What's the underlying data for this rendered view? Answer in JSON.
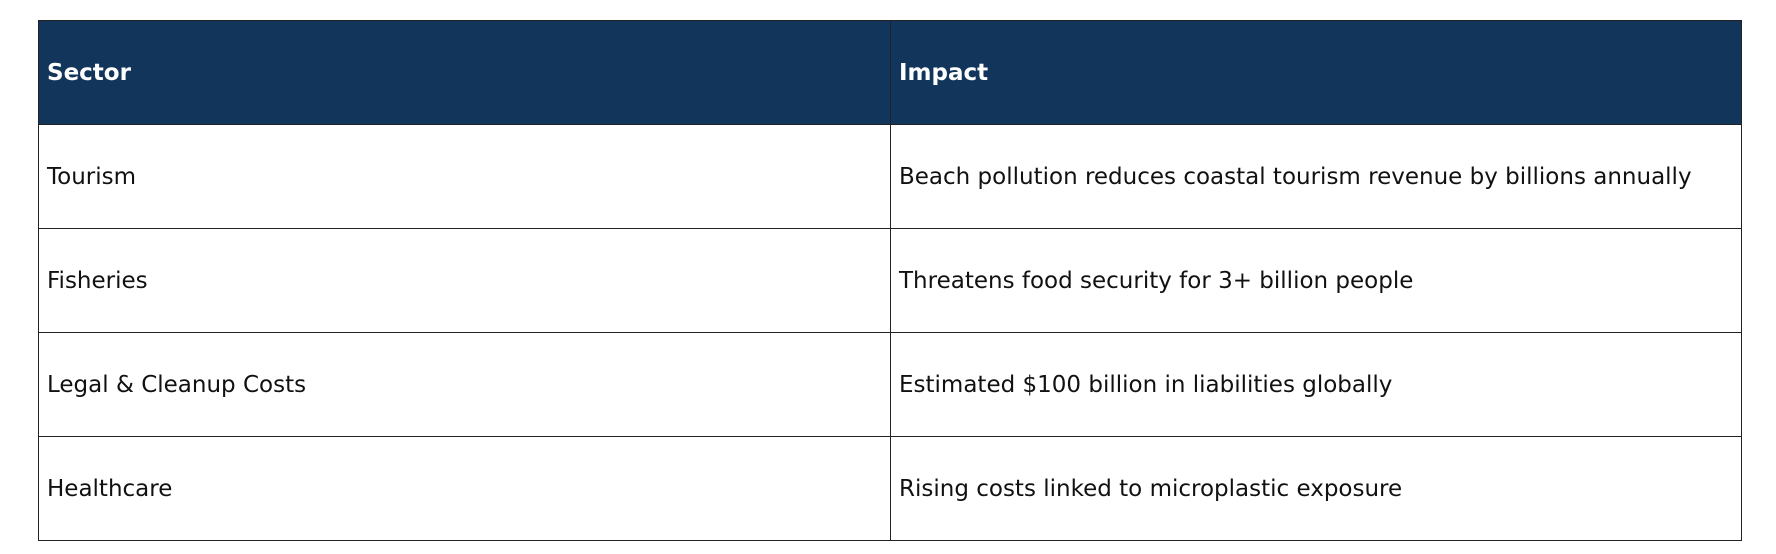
{
  "table": {
    "headers": [
      "Sector",
      "Impact"
    ],
    "rows": [
      [
        "Tourism",
        "Beach pollution reduces coastal tourism revenue by billions annually"
      ],
      [
        "Fisheries",
        "Threatens food security for 3+ billion people"
      ],
      [
        "Legal & Cleanup Costs",
        "Estimated $100 billion in liabilities globally"
      ],
      [
        "Healthcare",
        "Rising costs linked to microplastic exposure"
      ]
    ]
  },
  "colors": {
    "header_bg": "#12355b",
    "header_text": "#ffffff"
  }
}
